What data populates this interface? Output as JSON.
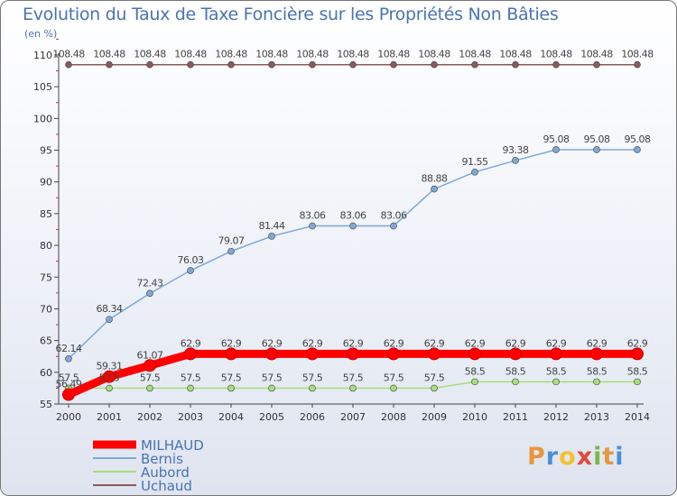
{
  "header": {
    "title": "Evolution du Taux de Taxe Foncière sur les Propriétés Non Bâties",
    "subtitle": "(en %)"
  },
  "logo": {
    "letters": [
      "P",
      "r",
      "o",
      "x",
      "i",
      "t",
      "i"
    ],
    "colors": [
      "#e8963a",
      "#4a90d9",
      "#f2c230",
      "#e24a3b",
      "#7ab648",
      "#e8963a",
      "#4a90d9"
    ]
  },
  "chart_data": {
    "type": "line",
    "x": [
      "2000",
      "2001",
      "2002",
      "2003",
      "2004",
      "2005",
      "2006",
      "2007",
      "2008",
      "2009",
      "2010",
      "2011",
      "2012",
      "2013",
      "2014"
    ],
    "ylim": [
      55,
      110
    ],
    "yticks": [
      "55",
      "60",
      "65",
      "70",
      "75",
      "80",
      "85",
      "90",
      "95",
      "100",
      "105",
      "110"
    ],
    "grid": false,
    "legend_position": "bottom-left",
    "series": [
      {
        "name": "MILHAUD",
        "color": "#ff0000",
        "values": [
          56.49,
          59.31,
          61.07,
          62.9,
          62.9,
          62.9,
          62.9,
          62.9,
          62.9,
          62.9,
          62.9,
          62.9,
          62.9,
          62.9,
          62.9
        ],
        "labels": [
          "56.49",
          "59.31",
          "61.07",
          "62.9",
          "62.9",
          "62.9",
          "62.9",
          "62.9",
          "62.9",
          "62.9",
          "62.9",
          "62.9",
          "62.9",
          "62.9",
          "62.9"
        ]
      },
      {
        "name": "Bernis",
        "color": "#7fa8d6",
        "values": [
          62.14,
          68.34,
          72.43,
          76.03,
          79.07,
          81.44,
          83.06,
          83.06,
          83.06,
          88.88,
          91.55,
          93.38,
          95.08,
          95.08,
          95.08
        ],
        "labels": [
          "62.14",
          "68.34",
          "72.43",
          "76.03",
          "79.07",
          "81.44",
          "83.06",
          "83.06",
          "83.06",
          "88.88",
          "91.55",
          "93.38",
          "95.08",
          "95.08",
          "95.08"
        ]
      },
      {
        "name": "Aubord",
        "color": "#a6df7a",
        "values": [
          57.5,
          57.5,
          57.5,
          57.5,
          57.5,
          57.5,
          57.5,
          57.5,
          57.5,
          57.5,
          58.5,
          58.5,
          58.5,
          58.5,
          58.5
        ],
        "labels": [
          "57.5",
          "57.5",
          "57.5",
          "57.5",
          "57.5",
          "57.5",
          "57.5",
          "57.5",
          "57.5",
          "57.5",
          "58.5",
          "58.5",
          "58.5",
          "58.5",
          "58.5"
        ]
      },
      {
        "name": "Uchaud",
        "color": "#8b5a5a",
        "values": [
          108.48,
          108.48,
          108.48,
          108.48,
          108.48,
          108.48,
          108.48,
          108.48,
          108.48,
          108.48,
          108.48,
          108.48,
          108.48,
          108.48,
          108.48
        ],
        "labels": [
          "108.48",
          "108.48",
          "108.48",
          "108.48",
          "108.48",
          "108.48",
          "108.48",
          "108.48",
          "108.48",
          "108.48",
          "108.48",
          "108.48",
          "108.48",
          "108.48",
          "108.48"
        ]
      }
    ]
  }
}
